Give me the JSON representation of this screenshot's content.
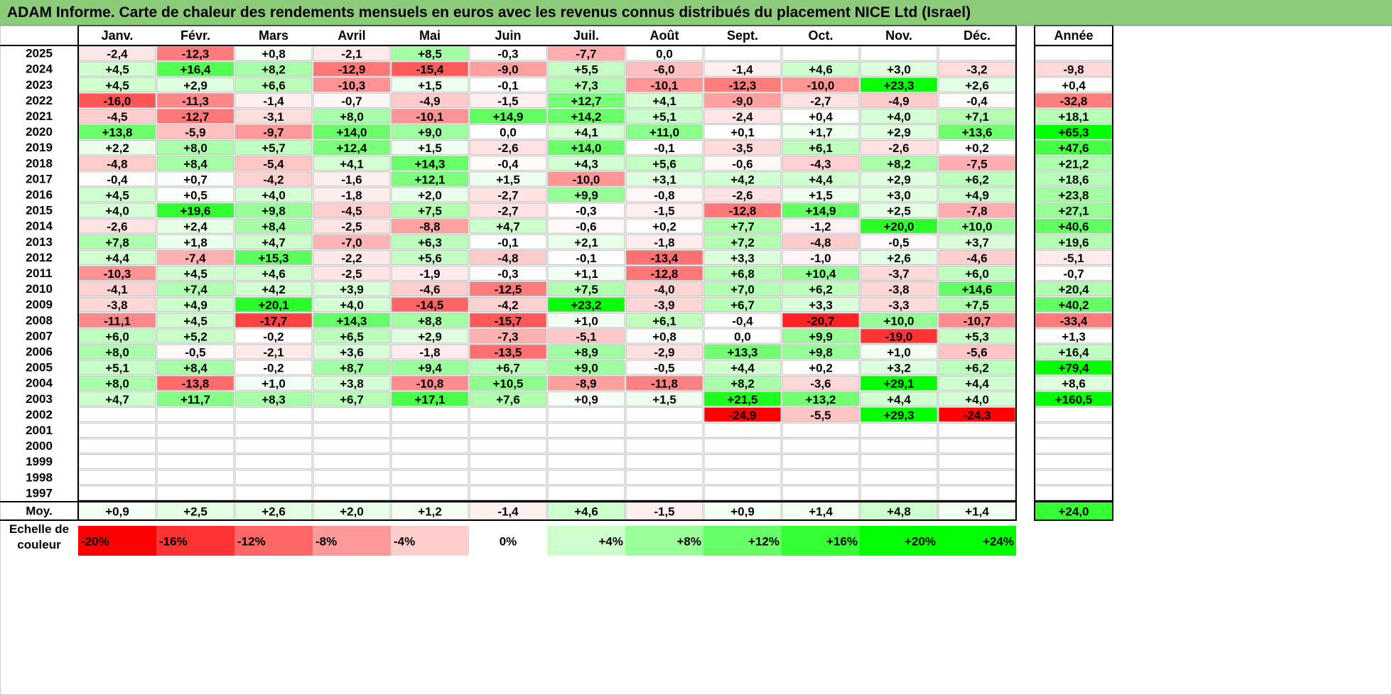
{
  "title": "ADAM Informe. Carte de chaleur des rendements mensuels en euros avec les revenus connus distribués du placement NICE Ltd (Israel)",
  "chart_data": {
    "type": "heatmap",
    "columns": [
      "Janv.",
      "Févr.",
      "Mars",
      "Avril",
      "Mai",
      "Juin",
      "Juil.",
      "Août",
      "Sept.",
      "Oct.",
      "Nov.",
      "Déc."
    ],
    "year_header": "Année",
    "rows": [
      {
        "year": "2025",
        "months": [
          -2.4,
          -12.3,
          0.8,
          -2.1,
          8.5,
          -0.3,
          -7.7,
          0.0,
          null,
          null,
          null,
          null
        ],
        "annual": null
      },
      {
        "year": "2024",
        "months": [
          4.5,
          16.4,
          8.2,
          -12.9,
          -15.4,
          -9.0,
          5.5,
          -6.0,
          -1.4,
          4.6,
          3.0,
          -3.2
        ],
        "annual": -9.8
      },
      {
        "year": "2023",
        "months": [
          4.5,
          2.9,
          6.6,
          -10.3,
          1.5,
          -0.1,
          7.3,
          -10.1,
          -12.3,
          -10.0,
          23.3,
          2.6
        ],
        "annual": 0.4
      },
      {
        "year": "2022",
        "months": [
          -16.0,
          -11.3,
          -1.4,
          -0.7,
          -4.9,
          -1.5,
          12.7,
          4.1,
          -9.0,
          -2.7,
          -4.9,
          -0.4
        ],
        "annual": -32.8
      },
      {
        "year": "2021",
        "months": [
          -4.5,
          -12.7,
          -3.1,
          8.0,
          -10.1,
          14.9,
          14.2,
          5.1,
          -2.4,
          0.4,
          4.0,
          7.1
        ],
        "annual": 18.1
      },
      {
        "year": "2020",
        "months": [
          13.8,
          -5.9,
          -9.7,
          14.0,
          9.0,
          0.0,
          4.1,
          11.0,
          0.1,
          1.7,
          2.9,
          13.6
        ],
        "annual": 65.3
      },
      {
        "year": "2019",
        "months": [
          2.2,
          8.0,
          5.7,
          12.4,
          1.5,
          -2.6,
          14.0,
          -0.1,
          -3.5,
          6.1,
          -2.6,
          0.2
        ],
        "annual": 47.6
      },
      {
        "year": "2018",
        "months": [
          -4.8,
          8.4,
          -5.4,
          4.1,
          14.3,
          -0.4,
          4.3,
          5.6,
          -0.6,
          -4.3,
          8.2,
          -7.5
        ],
        "annual": 21.2
      },
      {
        "year": "2017",
        "months": [
          -0.4,
          0.7,
          -4.2,
          -1.6,
          12.1,
          1.5,
          -10.0,
          3.1,
          4.2,
          4.4,
          2.9,
          6.2
        ],
        "annual": 18.6
      },
      {
        "year": "2016",
        "months": [
          4.5,
          0.5,
          4.0,
          -1.8,
          2.0,
          -2.7,
          9.9,
          -0.8,
          -2.6,
          1.5,
          3.0,
          4.9
        ],
        "annual": 23.8
      },
      {
        "year": "2015",
        "months": [
          4.0,
          19.6,
          9.8,
          -4.5,
          7.5,
          -2.7,
          -0.3,
          -1.5,
          -12.8,
          14.9,
          2.5,
          -7.8
        ],
        "annual": 27.1
      },
      {
        "year": "2014",
        "months": [
          -2.6,
          2.4,
          8.4,
          -2.5,
          -8.8,
          4.7,
          -0.6,
          0.2,
          7.7,
          -1.2,
          20.0,
          10.0
        ],
        "annual": 40.6
      },
      {
        "year": "2013",
        "months": [
          7.8,
          1.8,
          4.7,
          -7.0,
          6.3,
          -0.1,
          2.1,
          -1.8,
          7.2,
          -4.8,
          -0.5,
          3.7
        ],
        "annual": 19.6
      },
      {
        "year": "2012",
        "months": [
          4.4,
          -7.4,
          15.3,
          -2.2,
          5.6,
          -4.8,
          -0.1,
          -13.4,
          3.3,
          -1.0,
          2.6,
          -4.6
        ],
        "annual": -5.1
      },
      {
        "year": "2011",
        "months": [
          -10.3,
          4.5,
          4.6,
          -2.5,
          -1.9,
          -0.3,
          1.1,
          -12.8,
          6.8,
          10.4,
          -3.7,
          6.0
        ],
        "annual": -0.7
      },
      {
        "year": "2010",
        "months": [
          -4.1,
          7.4,
          4.2,
          3.9,
          -4.6,
          -12.5,
          7.5,
          -4.0,
          7.0,
          6.2,
          -3.8,
          14.6
        ],
        "annual": 20.4
      },
      {
        "year": "2009",
        "months": [
          -3.8,
          4.9,
          20.1,
          4.0,
          -14.5,
          -4.2,
          23.2,
          -3.9,
          6.7,
          3.3,
          -3.3,
          7.5
        ],
        "annual": 40.2
      },
      {
        "year": "2008",
        "months": [
          -11.1,
          4.5,
          -17.7,
          14.3,
          8.8,
          -15.7,
          1.0,
          6.1,
          -0.4,
          -20.7,
          10.0,
          -10.7
        ],
        "annual": -33.4
      },
      {
        "year": "2007",
        "months": [
          6.0,
          5.2,
          -0.2,
          6.5,
          2.9,
          -7.3,
          -5.1,
          0.8,
          0.0,
          9.9,
          -19.0,
          5.3
        ],
        "annual": 1.3
      },
      {
        "year": "2006",
        "months": [
          8.0,
          -0.5,
          -2.1,
          3.6,
          -1.8,
          -13.5,
          8.9,
          -2.9,
          13.3,
          9.8,
          1.0,
          -5.6
        ],
        "annual": 16.4
      },
      {
        "year": "2005",
        "months": [
          5.1,
          8.4,
          -0.2,
          8.7,
          9.4,
          6.7,
          9.0,
          -0.5,
          4.4,
          0.2,
          3.2,
          6.2
        ],
        "annual": 79.4
      },
      {
        "year": "2004",
        "months": [
          8.0,
          -13.8,
          1.0,
          3.8,
          -10.8,
          10.5,
          -8.9,
          -11.8,
          8.2,
          -3.6,
          29.1,
          4.4
        ],
        "annual": 8.6
      },
      {
        "year": "2003",
        "months": [
          4.7,
          11.7,
          8.3,
          6.7,
          17.1,
          7.6,
          0.9,
          1.5,
          21.5,
          13.2,
          4.4,
          4.0
        ],
        "annual": 160.5
      },
      {
        "year": "2002",
        "months": [
          null,
          null,
          null,
          null,
          null,
          null,
          null,
          null,
          -24.9,
          -5.5,
          29.3,
          -24.3
        ],
        "annual": null
      },
      {
        "year": "2001",
        "months": [
          null,
          null,
          null,
          null,
          null,
          null,
          null,
          null,
          null,
          null,
          null,
          null
        ],
        "annual": null
      },
      {
        "year": "2000",
        "months": [
          null,
          null,
          null,
          null,
          null,
          null,
          null,
          null,
          null,
          null,
          null,
          null
        ],
        "annual": null
      },
      {
        "year": "1999",
        "months": [
          null,
          null,
          null,
          null,
          null,
          null,
          null,
          null,
          null,
          null,
          null,
          null
        ],
        "annual": null
      },
      {
        "year": "1998",
        "months": [
          null,
          null,
          null,
          null,
          null,
          null,
          null,
          null,
          null,
          null,
          null,
          null
        ],
        "annual": null
      },
      {
        "year": "1997",
        "months": [
          null,
          null,
          null,
          null,
          null,
          null,
          null,
          null,
          null,
          null,
          null,
          null
        ],
        "annual": null
      }
    ],
    "average": {
      "label": "Moy.",
      "months": [
        0.9,
        2.5,
        2.6,
        2.0,
        1.2,
        -1.4,
        4.6,
        -1.5,
        0.9,
        1.4,
        4.8,
        1.4
      ],
      "annual": 24.0
    },
    "color_scale": {
      "label": "Echelle de couleur",
      "stops": [
        {
          "label": "-20%",
          "value": -20
        },
        {
          "label": "-16%",
          "value": -16
        },
        {
          "label": "-12%",
          "value": -12
        },
        {
          "label": "-8%",
          "value": -8
        },
        {
          "label": "-4%",
          "value": -4
        },
        {
          "label": "0%",
          "value": 0
        },
        {
          "label": "+4%",
          "value": 4
        },
        {
          "label": "+8%",
          "value": 8
        },
        {
          "label": "+12%",
          "value": 12
        },
        {
          "label": "+16%",
          "value": 16
        },
        {
          "label": "+20%",
          "value": 20
        },
        {
          "label": "+24%",
          "value": 24
        }
      ],
      "negative_max_color": "#ff0000",
      "positive_max_color": "#00ff00",
      "neutral_color": "#ffffff"
    }
  }
}
